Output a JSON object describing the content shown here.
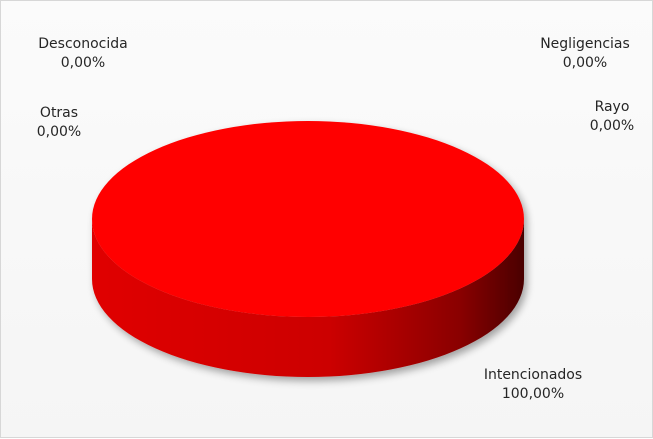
{
  "chart_data": {
    "type": "pie",
    "title": "",
    "legend": "none",
    "slices": [
      {
        "label": "Desconocida",
        "percent_text": "0,00%",
        "value": 0
      },
      {
        "label": "Negligencias",
        "percent_text": "0,00%",
        "value": 0
      },
      {
        "label": "Otras",
        "percent_text": "0,00%",
        "value": 0
      },
      {
        "label": "Rayo",
        "percent_text": "0,00%",
        "value": 0
      },
      {
        "label": "Intencionados",
        "percent_text": "100,00%",
        "value": 100
      }
    ],
    "colors": {
      "Intencionados": "#ff0000"
    },
    "style": "3d"
  }
}
